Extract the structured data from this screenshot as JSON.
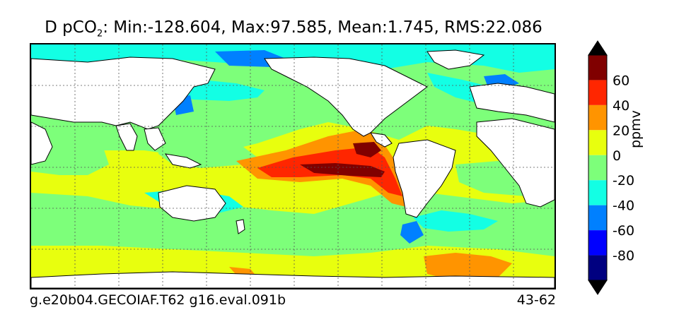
{
  "title_prefix": "D pCO",
  "title_sub": "2",
  "title_suffix": ": Min:-128.604, Max:97.585, Mean:1.745, RMS:22.086",
  "footer_left": "g.e20b04.GECOIAF.T62 g16.eval.091b",
  "footer_right": "43-62",
  "colorbar": {
    "label": "ppmv",
    "ticks": [
      "60",
      "40",
      "20",
      "0",
      "-20",
      "-40",
      "-60",
      "-80"
    ],
    "levels": [
      {
        "range": "above 80",
        "color": "#000000"
      },
      {
        "range": "60 to 80",
        "color": "#800000"
      },
      {
        "range": "40 to 60",
        "color": "#ff2600"
      },
      {
        "range": "20 to 40",
        "color": "#ff9400"
      },
      {
        "range": "0 to 20",
        "color": "#e8ff0e"
      },
      {
        "range": "-20 to 0",
        "color": "#7dff7a"
      },
      {
        "range": "-40 to -20",
        "color": "#13ffe4"
      },
      {
        "range": "-60 to -40",
        "color": "#0080ff"
      },
      {
        "range": "-80 to -60",
        "color": "#0000ff"
      },
      {
        "range": "-100 to -80",
        "color": "#000080"
      },
      {
        "range": "below -100",
        "color": "#000000"
      }
    ]
  },
  "colors": {
    "land": "#ffffff",
    "coast": "#000000",
    "grid": "#555555"
  }
}
